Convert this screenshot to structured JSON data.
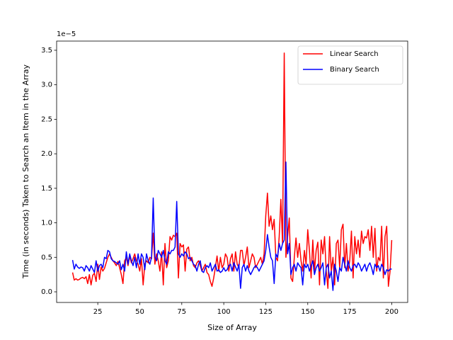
{
  "chart_data": {
    "type": "line",
    "x_label": "Size of Array",
    "y_label": "Time (in seconds) Taken to Search an Item in the Array",
    "y_offset_label": "1e−5",
    "x": [
      10,
      11,
      12,
      13,
      14,
      15,
      16,
      17,
      18,
      19,
      20,
      21,
      22,
      23,
      24,
      25,
      26,
      27,
      28,
      29,
      30,
      31,
      32,
      33,
      34,
      35,
      36,
      37,
      38,
      39,
      40,
      41,
      42,
      43,
      44,
      45,
      46,
      47,
      48,
      49,
      50,
      51,
      52,
      53,
      54,
      55,
      56,
      57,
      58,
      59,
      60,
      61,
      62,
      63,
      64,
      65,
      66,
      67,
      68,
      69,
      70,
      71,
      72,
      73,
      74,
      75,
      76,
      77,
      78,
      79,
      80,
      81,
      82,
      83,
      84,
      85,
      86,
      87,
      88,
      89,
      90,
      91,
      92,
      93,
      94,
      95,
      96,
      97,
      98,
      99,
      100,
      101,
      102,
      103,
      104,
      105,
      106,
      107,
      108,
      109,
      110,
      111,
      112,
      113,
      114,
      115,
      116,
      117,
      118,
      119,
      120,
      121,
      122,
      123,
      124,
      125,
      126,
      127,
      128,
      129,
      130,
      131,
      132,
      133,
      134,
      135,
      136,
      137,
      138,
      139,
      140,
      141,
      142,
      143,
      144,
      145,
      146,
      147,
      148,
      149,
      150,
      151,
      152,
      153,
      154,
      155,
      156,
      157,
      158,
      159,
      160,
      161,
      162,
      163,
      164,
      165,
      166,
      167,
      168,
      169,
      170,
      171,
      172,
      173,
      174,
      175,
      176,
      177,
      178,
      179,
      180,
      181,
      182,
      183,
      184,
      185,
      186,
      187,
      188,
      189,
      190,
      191,
      192,
      193,
      194,
      195,
      196,
      197,
      198,
      199,
      200
    ],
    "series": [
      {
        "name": "Linear Search",
        "color": "#ff0000",
        "values": [
          0.28,
          0.17,
          0.19,
          0.17,
          0.18,
          0.2,
          0.21,
          0.19,
          0.22,
          0.12,
          0.25,
          0.1,
          0.24,
          0.27,
          0.15,
          0.4,
          0.18,
          0.36,
          0.3,
          0.34,
          0.42,
          0.5,
          0.55,
          0.5,
          0.45,
          0.42,
          0.38,
          0.44,
          0.35,
          0.25,
          0.12,
          0.45,
          0.5,
          0.38,
          0.52,
          0.42,
          0.48,
          0.55,
          0.45,
          0.4,
          0.3,
          0.48,
          0.1,
          0.4,
          0.45,
          0.42,
          0.5,
          0.48,
          0.85,
          0.4,
          0.55,
          0.45,
          0.3,
          0.58,
          0.1,
          0.7,
          0.35,
          0.45,
          0.8,
          0.75,
          0.82,
          0.8,
          0.85,
          0.2,
          0.7,
          0.65,
          0.68,
          0.3,
          0.62,
          0.65,
          0.45,
          0.5,
          0.38,
          0.35,
          0.42,
          0.45,
          0.38,
          0.3,
          0.35,
          0.4,
          0.28,
          0.25,
          0.15,
          0.08,
          0.2,
          0.35,
          0.52,
          0.3,
          0.5,
          0.35,
          0.4,
          0.55,
          0.5,
          0.3,
          0.48,
          0.55,
          0.3,
          0.58,
          0.4,
          0.35,
          0.6,
          0.6,
          0.38,
          0.5,
          0.65,
          0.35,
          0.45,
          0.55,
          0.5,
          0.35,
          0.4,
          0.45,
          0.5,
          0.4,
          0.55,
          1.1,
          1.43,
          0.95,
          1.1,
          0.9,
          1.05,
          0.5,
          0.45,
          0.8,
          1.34,
          0.7,
          3.46,
          0.5,
          0.8,
          1.07,
          0.2,
          0.15,
          0.5,
          0.78,
          0.5,
          0.7,
          0.45,
          0.3,
          0.6,
          0.4,
          0.9,
          0.6,
          0.2,
          0.75,
          0.3,
          0.6,
          0.72,
          0.1,
          0.75,
          0.55,
          0.8,
          0.3,
          0.05,
          0.8,
          0.3,
          0.5,
          0.1,
          0.7,
          0.75,
          0.35,
          0.9,
          0.98,
          0.35,
          0.7,
          0.3,
          0.45,
          0.88,
          0.2,
          0.8,
          0.55,
          0.75,
          0.5,
          0.88,
          0.7,
          0.8,
          0.78,
          0.9,
          0.6,
          0.95,
          0.5,
          0.92,
          0.3,
          0.5,
          0.45,
          0.95,
          0.2,
          0.8,
          0.95,
          0.08,
          0.3,
          0.75
        ]
      },
      {
        "name": "Binary Search",
        "color": "#0000ff",
        "values": [
          0.46,
          0.33,
          0.4,
          0.36,
          0.34,
          0.36,
          0.35,
          0.3,
          0.38,
          0.35,
          0.3,
          0.38,
          0.33,
          0.28,
          0.45,
          0.3,
          0.38,
          0.4,
          0.35,
          0.5,
          0.48,
          0.6,
          0.58,
          0.48,
          0.45,
          0.44,
          0.42,
          0.4,
          0.45,
          0.32,
          0.4,
          0.3,
          0.58,
          0.4,
          0.55,
          0.45,
          0.38,
          0.5,
          0.35,
          0.55,
          0.4,
          0.55,
          0.5,
          0.32,
          0.55,
          0.45,
          0.4,
          0.5,
          1.36,
          0.5,
          0.45,
          0.6,
          0.55,
          0.5,
          0.6,
          0.45,
          0.4,
          0.58,
          0.55,
          0.6,
          0.6,
          0.65,
          1.31,
          0.55,
          0.5,
          0.55,
          0.52,
          0.58,
          0.55,
          0.48,
          0.5,
          0.45,
          0.4,
          0.38,
          0.3,
          0.4,
          0.45,
          0.3,
          0.28,
          0.35,
          0.38,
          0.35,
          0.42,
          0.3,
          0.35,
          0.4,
          0.3,
          0.32,
          0.28,
          0.3,
          0.35,
          0.3,
          0.32,
          0.38,
          0.4,
          0.3,
          0.42,
          0.36,
          0.3,
          0.4,
          0.05,
          0.35,
          0.4,
          0.3,
          0.38,
          0.3,
          0.25,
          0.3,
          0.35,
          0.38,
          0.35,
          0.3,
          0.35,
          0.4,
          0.45,
          0.6,
          0.83,
          0.65,
          0.5,
          0.45,
          0.12,
          0.55,
          0.5,
          0.7,
          0.6,
          0.7,
          0.75,
          1.88,
          0.55,
          0.7,
          0.25,
          0.35,
          0.4,
          0.3,
          0.42,
          0.38,
          0.35,
          0.1,
          0.4,
          0.35,
          0.4,
          0.3,
          0.38,
          0.45,
          0.25,
          0.35,
          0.4,
          0.3,
          0.35,
          0.42,
          0.1,
          0.35,
          0.4,
          0.2,
          0.3,
          0.02,
          0.4,
          0.3,
          0.15,
          0.35,
          0.3,
          0.5,
          0.4,
          0.3,
          0.45,
          0.35,
          0.3,
          0.38,
          0.4,
          0.35,
          0.42,
          0.38,
          0.3,
          0.35,
          0.4,
          0.3,
          0.38,
          0.42,
          0.35,
          0.25,
          0.4,
          0.35,
          0.38,
          0.3,
          0.4,
          0.35,
          0.25,
          0.32,
          0.3,
          0.33,
          0.33
        ]
      }
    ],
    "xlim": [
      0.5,
      209.5
    ],
    "xticks": [
      25,
      50,
      75,
      100,
      125,
      150,
      175,
      200
    ],
    "ylim": [
      -0.154,
      3.633
    ],
    "yticks": [
      {
        "value": 0,
        "label": "0.0"
      },
      0.5,
      {
        "value": 1,
        "label": "1.0"
      },
      1.5,
      {
        "value": 2,
        "label": "2.0"
      },
      2.5,
      {
        "value": 3,
        "label": "3.0"
      },
      3.5
    ],
    "legend": "upper right"
  }
}
